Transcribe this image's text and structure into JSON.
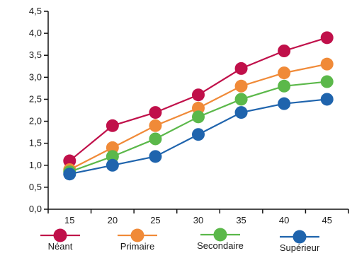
{
  "chart_data": {
    "type": "line",
    "x": [
      "15",
      "20",
      "25",
      "30",
      "35",
      "40",
      "45"
    ],
    "series": [
      {
        "name": "Néant",
        "color": "#c0104a",
        "values": [
          1.1,
          1.9,
          2.2,
          2.6,
          3.2,
          3.6,
          3.9
        ]
      },
      {
        "name": "Primaire",
        "color": "#f08a38",
        "values": [
          0.9,
          1.4,
          1.9,
          2.3,
          2.8,
          3.1,
          3.3
        ]
      },
      {
        "name": "Secondaire",
        "color": "#5bb84a",
        "values": [
          0.85,
          1.2,
          1.6,
          2.1,
          2.5,
          2.8,
          2.9
        ]
      },
      {
        "name": "Supérieur",
        "color": "#1f64ad",
        "values": [
          0.8,
          1.0,
          1.2,
          1.7,
          2.2,
          2.4,
          2.5
        ]
      }
    ],
    "ylim": [
      0,
      4.5
    ],
    "yticks": [
      "0,0",
      "0,5",
      "1,0",
      "1,5",
      "2,0",
      "2,5",
      "3,0",
      "3,5",
      "4,0",
      "4,5"
    ],
    "legend_position": "bottom",
    "grid": false
  }
}
